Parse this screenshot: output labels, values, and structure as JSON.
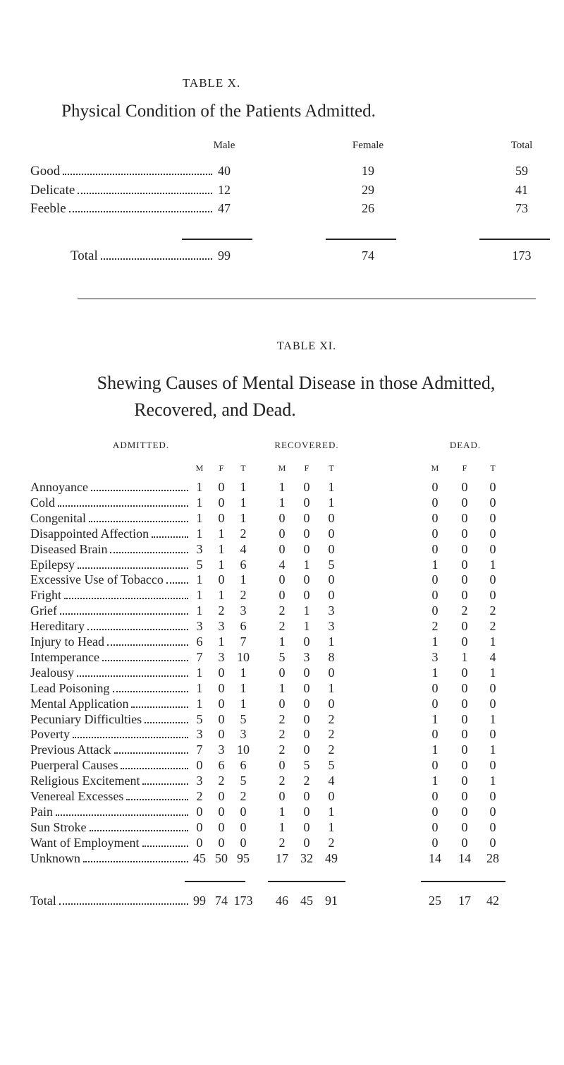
{
  "table_x": {
    "label": "TABLE X.",
    "title": "Physical Condition of the Patients Admitted.",
    "columns": [
      "Male",
      "Female",
      "Total"
    ],
    "rows": [
      {
        "label": "Good",
        "values": [
          40,
          19,
          59
        ]
      },
      {
        "label": "Delicate",
        "values": [
          12,
          29,
          41
        ]
      },
      {
        "label": "Feeble",
        "values": [
          47,
          26,
          73
        ]
      }
    ],
    "total": {
      "label": "Total",
      "values": [
        99,
        74,
        173
      ]
    }
  },
  "table_xi": {
    "label": "TABLE XI.",
    "title_lines": [
      "Shewing Causes of Mental Disease in those Admitted,",
      "Recovered, and Dead."
    ],
    "groups": [
      "ADMITTED.",
      "RECOVERED.",
      "DEAD."
    ],
    "subheaders": [
      "M",
      "F",
      "T"
    ],
    "rows": [
      {
        "label": "Annoyance",
        "values": [
          1,
          0,
          1,
          1,
          0,
          1,
          0,
          0,
          0
        ]
      },
      {
        "label": "Cold",
        "values": [
          1,
          0,
          1,
          1,
          0,
          1,
          0,
          0,
          0
        ]
      },
      {
        "label": "Congenital",
        "values": [
          1,
          0,
          1,
          0,
          0,
          0,
          0,
          0,
          0
        ]
      },
      {
        "label": "Disappointed Affection",
        "values": [
          1,
          1,
          2,
          0,
          0,
          0,
          0,
          0,
          0
        ]
      },
      {
        "label": "Diseased Brain",
        "values": [
          3,
          1,
          4,
          0,
          0,
          0,
          0,
          0,
          0
        ]
      },
      {
        "label": "Epilepsy",
        "values": [
          5,
          1,
          6,
          4,
          1,
          5,
          1,
          0,
          1
        ]
      },
      {
        "label": "Excessive Use of Tobacco",
        "values": [
          1,
          0,
          1,
          0,
          0,
          0,
          0,
          0,
          0
        ]
      },
      {
        "label": "Fright",
        "values": [
          1,
          1,
          2,
          0,
          0,
          0,
          0,
          0,
          0
        ]
      },
      {
        "label": "Grief",
        "values": [
          1,
          2,
          3,
          2,
          1,
          3,
          0,
          2,
          2
        ]
      },
      {
        "label": "Hereditary",
        "values": [
          3,
          3,
          6,
          2,
          1,
          3,
          2,
          0,
          2
        ]
      },
      {
        "label": "Injury to Head",
        "values": [
          6,
          1,
          7,
          1,
          0,
          1,
          1,
          0,
          1
        ]
      },
      {
        "label": "Intemperance",
        "values": [
          7,
          3,
          10,
          5,
          3,
          8,
          3,
          1,
          4
        ]
      },
      {
        "label": "Jealousy",
        "values": [
          1,
          0,
          1,
          0,
          0,
          0,
          1,
          0,
          1
        ]
      },
      {
        "label": "Lead Poisoning",
        "values": [
          1,
          0,
          1,
          1,
          0,
          1,
          0,
          0,
          0
        ]
      },
      {
        "label": "Mental Application",
        "values": [
          1,
          0,
          1,
          0,
          0,
          0,
          0,
          0,
          0
        ]
      },
      {
        "label": "Pecuniary Difficulties",
        "values": [
          5,
          0,
          5,
          2,
          0,
          2,
          1,
          0,
          1
        ]
      },
      {
        "label": "Poverty",
        "values": [
          3,
          0,
          3,
          2,
          0,
          2,
          0,
          0,
          0
        ]
      },
      {
        "label": "Previous Attack",
        "values": [
          7,
          3,
          10,
          2,
          0,
          2,
          1,
          0,
          1
        ]
      },
      {
        "label": "Puerperal Causes",
        "values": [
          0,
          6,
          6,
          0,
          5,
          5,
          0,
          0,
          0
        ]
      },
      {
        "label": "Religious Excitement",
        "values": [
          3,
          2,
          5,
          2,
          2,
          4,
          1,
          0,
          1
        ]
      },
      {
        "label": "Venereal Excesses",
        "values": [
          2,
          0,
          2,
          0,
          0,
          0,
          0,
          0,
          0
        ]
      },
      {
        "label": "Pain",
        "values": [
          0,
          0,
          0,
          1,
          0,
          1,
          0,
          0,
          0
        ]
      },
      {
        "label": "Sun Stroke",
        "values": [
          0,
          0,
          0,
          1,
          0,
          1,
          0,
          0,
          0
        ]
      },
      {
        "label": "Want of Employment",
        "values": [
          0,
          0,
          0,
          2,
          0,
          2,
          0,
          0,
          0
        ]
      },
      {
        "label": "Unknown",
        "values": [
          45,
          50,
          95,
          17,
          32,
          49,
          14,
          14,
          28
        ]
      }
    ],
    "total": {
      "label": "Total",
      "values": [
        99,
        74,
        173,
        46,
        45,
        91,
        25,
        17,
        42
      ]
    }
  }
}
